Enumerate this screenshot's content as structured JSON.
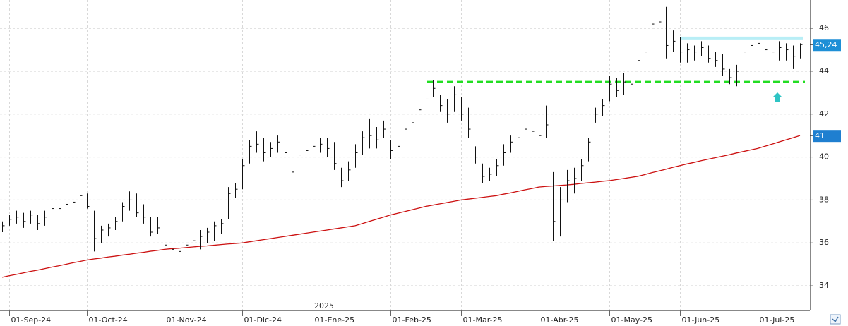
{
  "chart_data": {
    "type": "ohlc",
    "ylim": [
      32.85,
      47.32
    ],
    "yticks": [
      34,
      36,
      38,
      40,
      42,
      44,
      46
    ],
    "grid": true,
    "bar_color": "#111111",
    "categories": [
      null,
      "01-Sep-24",
      null,
      null,
      null,
      null,
      null,
      null,
      null,
      null,
      null,
      null,
      "01-Oct-24",
      null,
      null,
      null,
      null,
      null,
      null,
      null,
      null,
      null,
      null,
      "01-Nov-24",
      null,
      null,
      null,
      null,
      null,
      null,
      null,
      null,
      null,
      null,
      "01-Dic-24",
      null,
      null,
      null,
      null,
      null,
      null,
      null,
      null,
      null,
      "01-Ene-25",
      null,
      null,
      null,
      null,
      null,
      null,
      null,
      null,
      null,
      null,
      "01-Feb-25",
      null,
      null,
      null,
      null,
      null,
      null,
      null,
      null,
      null,
      "01-Mar-25",
      null,
      null,
      null,
      null,
      null,
      null,
      null,
      null,
      null,
      null,
      "01-Abr-25",
      null,
      null,
      null,
      null,
      null,
      null,
      null,
      null,
      null,
      "01-May-25",
      null,
      null,
      null,
      null,
      null,
      null,
      null,
      null,
      null,
      "01-Jun-25",
      null,
      null,
      null,
      null,
      null,
      null,
      null,
      null,
      null,
      null,
      "01-Jul-25",
      null,
      null,
      null,
      null,
      null,
      null
    ],
    "high": [
      37.0,
      37.3,
      37.5,
      37.4,
      37.5,
      37.3,
      37.5,
      37.8,
      37.9,
      38.0,
      38.2,
      38.5,
      38.3,
      37.5,
      36.8,
      36.9,
      37.2,
      37.9,
      38.4,
      38.3,
      37.8,
      37.2,
      37.2,
      36.6,
      36.5,
      36.3,
      36.1,
      36.5,
      36.6,
      36.7,
      37.0,
      37.1,
      38.6,
      38.8,
      39.9,
      40.8,
      41.2,
      40.9,
      40.7,
      41.0,
      40.8,
      39.8,
      40.4,
      40.6,
      40.8,
      40.9,
      40.9,
      40.7,
      39.5,
      39.8,
      40.6,
      41.2,
      41.8,
      41.4,
      41.7,
      40.8,
      40.8,
      41.6,
      41.9,
      42.6,
      43.0,
      43.6,
      42.9,
      42.7,
      43.3,
      42.8,
      42.3,
      40.5,
      39.7,
      39.5,
      39.9,
      40.6,
      41.0,
      41.2,
      41.6,
      41.7,
      41.4,
      42.4,
      39.3,
      38.6,
      39.4,
      39.5,
      39.9,
      40.9,
      42.3,
      42.7,
      43.8,
      43.7,
      43.9,
      43.9,
      44.8,
      45.2,
      46.8,
      46.8,
      47.0,
      45.9,
      45.6,
      45.3,
      45.2,
      45.4,
      45.2,
      44.9,
      44.8,
      44.1,
      44.3,
      45.1,
      45.6,
      45.5,
      45.3,
      45.2,
      45.4,
      45.3,
      45.2,
      45.3
    ],
    "low": [
      36.5,
      36.8,
      36.9,
      36.7,
      36.9,
      36.6,
      36.8,
      37.1,
      37.3,
      37.4,
      37.6,
      37.8,
      37.6,
      35.6,
      36.0,
      36.3,
      36.6,
      37.0,
      37.5,
      37.2,
      36.9,
      36.3,
      36.4,
      35.6,
      35.4,
      35.3,
      35.6,
      35.6,
      35.7,
      36.0,
      36.1,
      36.4,
      37.1,
      38.1,
      38.5,
      39.7,
      40.2,
      39.8,
      40.0,
      40.2,
      39.9,
      39.0,
      39.4,
      40.0,
      40.1,
      40.2,
      40.0,
      39.4,
      38.6,
      38.9,
      39.5,
      40.1,
      40.4,
      40.4,
      40.9,
      39.9,
      40.0,
      40.5,
      41.1,
      41.6,
      42.2,
      42.8,
      42.1,
      41.6,
      42.1,
      41.7,
      40.9,
      39.7,
      38.8,
      38.9,
      39.1,
      39.6,
      40.2,
      40.4,
      40.7,
      40.9,
      40.3,
      40.9,
      36.1,
      36.3,
      37.9,
      38.3,
      38.9,
      39.8,
      41.6,
      41.9,
      42.6,
      42.8,
      42.9,
      42.7,
      43.4,
      44.2,
      45.0,
      45.9,
      44.6,
      44.9,
      44.4,
      44.4,
      44.5,
      44.7,
      44.4,
      44.2,
      43.8,
      43.4,
      43.3,
      44.3,
      44.8,
      44.7,
      44.6,
      44.5,
      44.5,
      44.5,
      44.1,
      44.6
    ],
    "close": [
      36.8,
      37.1,
      37.2,
      37.0,
      37.3,
      36.9,
      37.2,
      37.6,
      37.6,
      37.8,
      37.9,
      38.2,
      37.7,
      36.2,
      36.6,
      36.7,
      37.0,
      37.7,
      38.0,
      37.4,
      37.2,
      36.5,
      36.7,
      35.9,
      35.7,
      35.6,
      35.9,
      36.1,
      36.3,
      36.5,
      36.8,
      36.9,
      38.3,
      38.5,
      39.6,
      40.5,
      40.6,
      40.2,
      40.4,
      40.7,
      40.2,
      39.3,
      40.1,
      40.3,
      40.5,
      40.6,
      40.4,
      39.7,
      38.9,
      39.4,
      40.2,
      40.9,
      41.0,
      40.8,
      41.3,
      40.3,
      40.5,
      41.3,
      41.6,
      42.2,
      42.7,
      43.2,
      42.4,
      42.0,
      42.9,
      42.0,
      41.3,
      40.0,
      39.1,
      39.2,
      39.6,
      40.2,
      40.7,
      40.9,
      41.3,
      41.2,
      41.0,
      41.5,
      37.0,
      38.0,
      38.9,
      39.0,
      39.6,
      40.7,
      42.0,
      42.4,
      43.4,
      43.1,
      43.5,
      43.4,
      44.5,
      44.9,
      46.2,
      46.3,
      45.2,
      45.4,
      44.9,
      45.0,
      44.9,
      45.1,
      44.6,
      44.5,
      44.1,
      43.7,
      44.0,
      44.9,
      45.2,
      45.3,
      45.0,
      44.9,
      45.1,
      45.0,
      44.7,
      45.24
    ],
    "ma": {
      "color": "#cc1111",
      "values": [
        34.4,
        34.47,
        34.53,
        34.6,
        34.67,
        34.73,
        34.8,
        34.87,
        34.93,
        35.0,
        35.07,
        35.13,
        35.2,
        35.25,
        35.29,
        35.34,
        35.38,
        35.43,
        35.47,
        35.52,
        35.56,
        35.61,
        35.65,
        35.7,
        35.73,
        35.75,
        35.78,
        35.81,
        35.84,
        35.86,
        35.89,
        35.92,
        35.95,
        35.97,
        36.0,
        36.05,
        36.1,
        36.15,
        36.2,
        36.25,
        36.3,
        36.35,
        36.4,
        36.45,
        36.5,
        36.55,
        36.6,
        36.65,
        36.7,
        36.75,
        36.8,
        36.9,
        37.0,
        37.1,
        37.2,
        37.3,
        37.38,
        37.46,
        37.54,
        37.62,
        37.7,
        37.76,
        37.82,
        37.88,
        37.94,
        38.0,
        38.04,
        38.08,
        38.12,
        38.16,
        38.2,
        38.27,
        38.33,
        38.4,
        38.47,
        38.53,
        38.6,
        38.63,
        38.65,
        38.68,
        38.7,
        38.73,
        38.77,
        38.8,
        38.83,
        38.87,
        38.9,
        38.95,
        39.0,
        39.05,
        39.1,
        39.18,
        39.27,
        39.35,
        39.43,
        39.52,
        39.6,
        39.68,
        39.75,
        39.83,
        39.9,
        39.97,
        40.04,
        40.11,
        40.19,
        40.26,
        40.33,
        40.4,
        40.5,
        40.6,
        40.7,
        40.8,
        40.9,
        41.0
      ]
    },
    "hlines": [
      {
        "value": 43.5,
        "color": "#22dd22",
        "style": "dashed"
      },
      {
        "value": 45.55,
        "color": "#b8eef6",
        "style": "solid"
      }
    ],
    "price_labels": [
      {
        "value": 45.24,
        "label": "45,24",
        "color": "#1e8fd6"
      },
      {
        "value": 41,
        "color": "#1f7fd0"
      }
    ],
    "year_label": "2025"
  }
}
